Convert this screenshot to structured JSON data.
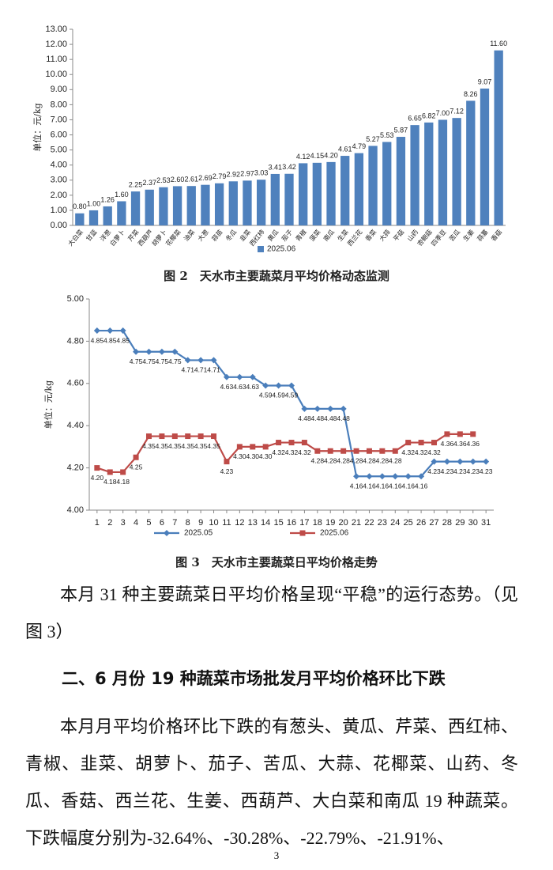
{
  "chart_data": [
    {
      "type": "bar",
      "title": "图 2　天水市主要蔬菜月平均价格动态监测",
      "y_label": "单位：元/kg",
      "categories": [
        "大白菜",
        "甘蓝",
        "洋葱",
        "白萝卜",
        "芹菜",
        "西葫芦",
        "胡萝卜",
        "花椰菜",
        "油菜",
        "大葱",
        "蒜苗",
        "冬瓜",
        "韭菜",
        "西红柿",
        "黄瓜",
        "茄子",
        "青椒",
        "菠菜",
        "南瓜",
        "生菜",
        "西兰花",
        "香菜",
        "大蒜",
        "平菇",
        "山药",
        "杏鲍菇",
        "四季豆",
        "苦瓜",
        "生姜",
        "蒜薹",
        "香菇"
      ],
      "series": [
        {
          "name": "2025.06",
          "color": "#4f81bd",
          "values": [
            0.8,
            1.0,
            1.26,
            1.6,
            2.25,
            2.37,
            2.53,
            2.6,
            2.61,
            2.69,
            2.79,
            2.92,
            2.97,
            3.03,
            3.41,
            3.42,
            4.12,
            4.15,
            4.2,
            4.61,
            4.79,
            5.27,
            5.53,
            5.87,
            6.65,
            6.82,
            7.0,
            7.12,
            8.26,
            9.07,
            11.6
          ],
          "value_labels": [
            "0.80",
            "1.00",
            "1.26",
            "1.60",
            "2.25",
            "2.37",
            "2.53",
            "2.60",
            "2.61",
            "2.69",
            "2.79",
            "2.92",
            "2.97",
            "3.03",
            "3.41",
            "3.42",
            "4.12",
            "4.15",
            "4.20",
            "4.61",
            "4.79",
            "5.27",
            "5.53",
            "5.87",
            "6.65",
            "6.82",
            "7.00",
            "7.12",
            "8.26",
            "9.07",
            "11.60"
          ]
        }
      ],
      "ylim": [
        0,
        13
      ],
      "yticks": [
        {
          "value": 0,
          "label": "0.00"
        },
        {
          "value": 1,
          "label": "1.00"
        },
        {
          "value": 2,
          "label": "2.00"
        },
        {
          "value": 3,
          "label": "3.00"
        },
        {
          "value": 4,
          "label": "4.00"
        },
        {
          "value": 5,
          "label": "5.00"
        },
        {
          "value": 6,
          "label": "6.00"
        },
        {
          "value": 7,
          "label": "7.00"
        },
        {
          "value": 8,
          "label": "8.00"
        },
        {
          "value": 9,
          "label": "9.00"
        },
        {
          "value": 10,
          "label": "10.00"
        },
        {
          "value": 11,
          "label": "11.00"
        },
        {
          "value": 12,
          "label": "12.00"
        },
        {
          "value": 13,
          "label": "13.00"
        }
      ],
      "grid": false,
      "legend": "bottom"
    },
    {
      "type": "line",
      "title": "图 3　天水市主要蔬菜日平均价格走势",
      "y_label": "单位：元/kg",
      "x": [
        1,
        2,
        3,
        4,
        5,
        6,
        7,
        8,
        9,
        10,
        11,
        12,
        13,
        14,
        15,
        16,
        17,
        18,
        19,
        20,
        21,
        22,
        23,
        24,
        25,
        26,
        27,
        28,
        29,
        30,
        31
      ],
      "xlim": [
        0.4,
        31.6
      ],
      "xticks": [
        1,
        2,
        3,
        4,
        5,
        6,
        7,
        8,
        9,
        10,
        11,
        12,
        13,
        14,
        15,
        16,
        17,
        18,
        19,
        20,
        21,
        22,
        23,
        24,
        25,
        26,
        27,
        28,
        29,
        30,
        31
      ],
      "series": [
        {
          "name": "2025.05",
          "color": "#4a7ebb",
          "marker": "diamond",
          "values": [
            4.85,
            4.85,
            4.85,
            4.75,
            4.75,
            4.75,
            4.75,
            4.71,
            4.71,
            4.71,
            4.63,
            4.63,
            4.63,
            4.59,
            4.59,
            4.59,
            4.48,
            4.48,
            4.48,
            4.48,
            4.16,
            4.16,
            4.16,
            4.16,
            4.16,
            4.16,
            4.23,
            4.23,
            4.23,
            4.23,
            4.23
          ],
          "value_labels": [
            "4.85",
            "4.85",
            "4.85",
            "4.75",
            "4.75",
            "4.75",
            "4.75",
            "4.71",
            "4.71",
            "4.71",
            "4.63",
            "4.63",
            "4.63",
            "4.59",
            "4.59",
            "4.59",
            "4.48",
            "4.48",
            "4.48",
            "4.48",
            "4.16",
            "4.16",
            "4.16",
            "4.16",
            "4.16",
            "4.16",
            "4.23",
            "4.23",
            "4.23",
            "4.23",
            "4.23"
          ]
        },
        {
          "name": "2025.06",
          "color": "#be4b48",
          "marker": "square",
          "values": [
            4.2,
            4.18,
            4.18,
            4.25,
            4.35,
            4.35,
            4.35,
            4.35,
            4.35,
            4.35,
            4.23,
            4.3,
            4.3,
            4.3,
            4.32,
            4.32,
            4.32,
            4.28,
            4.28,
            4.28,
            4.28,
            4.28,
            4.28,
            4.28,
            4.32,
            4.32,
            4.32,
            4.36,
            4.36,
            4.36,
            null
          ],
          "value_labels": [
            "4.20",
            "4.18",
            "4.18",
            "4.25",
            "4.35",
            "4.35",
            "4.35",
            "4.35",
            "4.35",
            "4.35",
            "4.23",
            "4.30",
            "4.30",
            "4.30",
            "4.32",
            "4.32",
            "4.32",
            "4.28",
            "4.28",
            "4.28",
            "4.28",
            "4.28",
            "4.28",
            "4.28",
            "4.32",
            "4.32",
            "4.32",
            "4.36",
            "4.36",
            "4.36",
            null
          ]
        }
      ],
      "ylim": [
        4.0,
        5.0
      ],
      "yticks": [
        {
          "value": 4.0,
          "label": "4.00"
        },
        {
          "value": 4.2,
          "label": "4.20"
        },
        {
          "value": 4.4,
          "label": "4.40"
        },
        {
          "value": 4.6,
          "label": "4.60"
        },
        {
          "value": 4.8,
          "label": "4.80"
        },
        {
          "value": 5.0,
          "label": "5.00"
        }
      ],
      "grid": false,
      "legend": "bottom"
    }
  ],
  "body": {
    "paragraph_1": "本月 31 种主要蔬菜日平均价格呈现“平稳”的运行态势。（见图 3）",
    "heading": "二、6 月份 19 种蔬菜市场批发月平均价格环比下跌",
    "paragraph_2": "本月月平均价格环比下跌的有葱头、黄瓜、芹菜、西红柿、青椒、韭菜、胡萝卜、茄子、苦瓜、大蒜、花椰菜、山药、冬瓜、香菇、西兰花、生姜、西葫芦、大白菜和南瓜 19 种蔬菜。下跌幅度分别为-32.64%、-30.28%、-22.79%、-21.91%、"
  },
  "footer": {
    "page_number": "3"
  }
}
